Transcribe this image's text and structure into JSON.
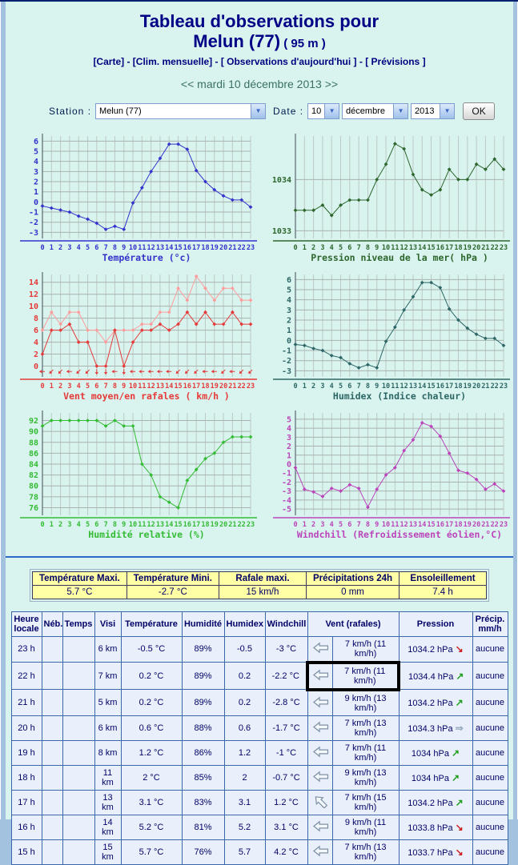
{
  "page": {
    "title_line1": "Tableau d'observations pour",
    "title_city": "Melun (77)",
    "title_alt": " ( 95 m )",
    "nav_links": [
      "[Carte]",
      "[Clim. mensuelle]",
      "[ Observations d'aujourd'hui ]",
      "[ Prévisions ]"
    ],
    "nav_sep": " - ",
    "date_nav": {
      "prev": "<<",
      "label": "mardi 10 décembre 2013",
      "next": ">>"
    },
    "station_label": "Station :",
    "station_value": "Melun (77)",
    "date_label": "Date :",
    "date_day": "10",
    "date_month": "décembre",
    "date_year": "2013",
    "ok_label": "OK"
  },
  "icons": {
    "dropdown": "▼",
    "trend_up": "↗",
    "trend_down": "↘",
    "trend_steady": "⇒"
  },
  "chart_data": [
    {
      "name": "temperature",
      "type": "line",
      "title": "Température (°c)",
      "color": "#3333cc",
      "categories": [
        0,
        1,
        2,
        3,
        4,
        5,
        6,
        7,
        8,
        9,
        10,
        11,
        12,
        13,
        14,
        15,
        16,
        17,
        18,
        19,
        20,
        21,
        22,
        23
      ],
      "series": [
        {
          "name": "Température",
          "values": [
            -0.4,
            -0.6,
            -0.8,
            -1.0,
            -1.4,
            -1.7,
            -2.1,
            -2.7,
            -2.4,
            -2.7,
            -0.1,
            1.4,
            3.0,
            4.3,
            5.7,
            5.7,
            5.2,
            3.1,
            2.0,
            1.2,
            0.6,
            0.2,
            0.2,
            -0.5
          ]
        }
      ],
      "ylim": [
        -3.6,
        6.5
      ],
      "yticks": [
        -3,
        -2,
        -1,
        0,
        1,
        2,
        3,
        4,
        5,
        6
      ]
    },
    {
      "name": "pressure",
      "type": "line",
      "title": "Pression niveau de la mer( hPa )",
      "color": "#2d662d",
      "categories": [
        0,
        1,
        2,
        3,
        4,
        5,
        6,
        7,
        8,
        9,
        10,
        11,
        12,
        13,
        14,
        15,
        16,
        17,
        18,
        19,
        20,
        21,
        22,
        23
      ],
      "series": [
        {
          "name": "Pression",
          "values": [
            1033.4,
            1033.4,
            1033.4,
            1033.5,
            1033.3,
            1033.5,
            1033.6,
            1033.6,
            1033.6,
            1034.0,
            1034.3,
            1034.7,
            1034.6,
            1034.1,
            1033.8,
            1033.7,
            1033.8,
            1034.2,
            1034.0,
            1034.0,
            1034.3,
            1034.2,
            1034.4,
            1034.2
          ]
        }
      ],
      "ylim": [
        1032.85,
        1034.85
      ],
      "yticks": [
        1033,
        1034
      ]
    },
    {
      "name": "wind",
      "type": "line",
      "title": "Vent moyen/en rafales ( km/h )",
      "color": "#e63939",
      "color2": "#ff9c9c",
      "categories": [
        0,
        1,
        2,
        3,
        4,
        5,
        6,
        7,
        8,
        9,
        10,
        11,
        12,
        13,
        14,
        15,
        16,
        17,
        18,
        19,
        20,
        21,
        22,
        23
      ],
      "series": [
        {
          "name": "Vent moyen",
          "values": [
            2,
            6,
            6,
            7,
            4,
            4,
            0,
            0,
            6,
            0,
            4,
            6,
            6,
            7,
            6,
            7,
            9,
            7,
            9,
            7,
            7,
            9,
            7,
            7
          ]
        },
        {
          "name": "Rafales",
          "values": [
            6,
            9,
            7,
            9,
            9,
            6,
            6,
            4,
            6,
            6,
            6,
            7,
            7,
            9,
            9,
            13,
            11,
            15,
            13,
            11,
            13,
            13,
            11,
            11
          ]
        }
      ],
      "ylim": [
        -1.8,
        15.3
      ],
      "yticks": [
        0,
        2,
        4,
        6,
        8,
        10,
        12,
        14
      ],
      "arrows_deg": [
        180,
        135,
        135,
        180,
        135,
        135,
        90,
        90,
        180,
        90,
        180,
        180,
        180,
        180,
        180,
        135,
        135,
        135,
        180,
        180,
        135,
        180,
        135,
        135
      ],
      "arrows_baseline": -0.9
    },
    {
      "name": "humidex",
      "type": "line",
      "title": "Humidex (Indice chaleur)",
      "color": "#2d6666",
      "categories": [
        0,
        1,
        2,
        3,
        4,
        5,
        6,
        7,
        8,
        9,
        10,
        11,
        12,
        13,
        14,
        15,
        16,
        17,
        18,
        19,
        20,
        21,
        22,
        23
      ],
      "series": [
        {
          "name": "Humidex",
          "values": [
            -0.4,
            -0.5,
            -0.8,
            -1.0,
            -1.5,
            -1.7,
            -2.3,
            -2.7,
            -2.4,
            -2.7,
            -0.1,
            1.3,
            3.0,
            4.3,
            5.7,
            5.7,
            5.2,
            3.1,
            2.0,
            1.2,
            0.6,
            0.2,
            0.2,
            -0.5
          ]
        }
      ],
      "ylim": [
        -3.6,
        6.5
      ],
      "yticks": [
        -3,
        -2,
        -1,
        0,
        1,
        2,
        3,
        4,
        5,
        6
      ]
    },
    {
      "name": "humidity",
      "type": "line",
      "title": "Humidité relative (%)",
      "color": "#33bb33",
      "categories": [
        0,
        1,
        2,
        3,
        4,
        5,
        6,
        7,
        8,
        9,
        10,
        11,
        12,
        13,
        14,
        15,
        16,
        17,
        18,
        19,
        20,
        21,
        22,
        23
      ],
      "series": [
        {
          "name": "Humidité",
          "values": [
            91,
            92,
            92,
            92,
            92,
            92,
            92,
            91,
            92,
            91,
            91,
            84,
            82,
            78,
            77,
            76,
            81,
            83,
            85,
            86,
            88,
            89,
            89,
            89
          ]
        }
      ],
      "ylim": [
        74.6,
        93.4
      ],
      "yticks": [
        76,
        78,
        80,
        82,
        84,
        86,
        88,
        90,
        92
      ]
    },
    {
      "name": "windchill",
      "type": "line",
      "title": "Windchill (Refroidissement éolien,°C)",
      "color": "#bb44bb",
      "categories": [
        0,
        1,
        2,
        3,
        4,
        5,
        6,
        7,
        8,
        9,
        10,
        11,
        12,
        13,
        14,
        15,
        16,
        17,
        18,
        19,
        20,
        21,
        22,
        23
      ],
      "series": [
        {
          "name": "Windchill",
          "values": [
            -0.4,
            -2.8,
            -3.1,
            -3.6,
            -2.7,
            -3.0,
            -2.3,
            -2.7,
            -4.8,
            -2.8,
            -1.2,
            -0.4,
            1.5,
            2.7,
            4.6,
            4.2,
            3.1,
            1.2,
            -0.7,
            -1.0,
            -1.7,
            -2.8,
            -2.2,
            -3.0
          ]
        }
      ],
      "ylim": [
        -5.7,
        5.7
      ],
      "yticks": [
        -5,
        -4,
        -3,
        -2,
        -1,
        0,
        1,
        2,
        3,
        4,
        5
      ]
    }
  ],
  "summary": {
    "headers": [
      "Température Maxi.",
      "Température Mini.",
      "Rafale maxi.",
      "Précipitations 24h",
      "Ensoleillement"
    ],
    "values": [
      "5.7 °C",
      "-2.7 °C",
      "15 km/h",
      "0 mm",
      "7.4 h"
    ]
  },
  "obs_table": {
    "headers": [
      {
        "label": "Heure locale"
      },
      {
        "label": "Néb."
      },
      {
        "label": "Temps"
      },
      {
        "label": "Visi"
      },
      {
        "label": "Température"
      },
      {
        "label": "Humidité"
      },
      {
        "label": "Humidex"
      },
      {
        "label": "Windchill"
      },
      {
        "label": "Vent (rafales)",
        "colspan": 2
      },
      {
        "label": "Pression"
      },
      {
        "label": "Précip. mm/h"
      }
    ],
    "rows": [
      {
        "hour": "23 h",
        "neb": "",
        "temps": "",
        "visi": "6 km",
        "temp": "-0.5 °C",
        "hum": "89%",
        "humidex": "-0.5",
        "windchill": "-3 °C",
        "wind_dir": "left",
        "wind": "7 km/h (11 km/h)",
        "pression": "1034.2 hPa",
        "trend": "down",
        "precip": "aucune",
        "highlight": false
      },
      {
        "hour": "22 h",
        "neb": "",
        "temps": "",
        "visi": "7 km",
        "temp": "0.2 °C",
        "hum": "89%",
        "humidex": "0.2",
        "windchill": "-2.2 °C",
        "wind_dir": "left",
        "wind": "7 km/h (11 km/h)",
        "pression": "1034.4 hPa",
        "trend": "up",
        "precip": "aucune",
        "highlight": true
      },
      {
        "hour": "21 h",
        "neb": "",
        "temps": "",
        "visi": "5 km",
        "temp": "0.2 °C",
        "hum": "89%",
        "humidex": "0.2",
        "windchill": "-2.8 °C",
        "wind_dir": "left",
        "wind": "9 km/h (13 km/h)",
        "pression": "1034.2 hPa",
        "trend": "up",
        "precip": "aucune",
        "highlight": false
      },
      {
        "hour": "20 h",
        "neb": "",
        "temps": "",
        "visi": "6 km",
        "temp": "0.6 °C",
        "hum": "88%",
        "humidex": "0.6",
        "windchill": "-1.7 °C",
        "wind_dir": "left",
        "wind": "7 km/h (13 km/h)",
        "pression": "1034.3 hPa",
        "trend": "steady",
        "precip": "aucune",
        "highlight": false
      },
      {
        "hour": "19 h",
        "neb": "",
        "temps": "",
        "visi": "8 km",
        "temp": "1.2 °C",
        "hum": "86%",
        "humidex": "1.2",
        "windchill": "-1 °C",
        "wind_dir": "left",
        "wind": "7 km/h (11 km/h)",
        "pression": "1034 hPa",
        "trend": "up",
        "precip": "aucune",
        "highlight": false
      },
      {
        "hour": "18 h",
        "neb": "",
        "temps": "",
        "visi": "11 km",
        "temp": "2 °C",
        "hum": "85%",
        "humidex": "2",
        "windchill": "-0.7 °C",
        "wind_dir": "left",
        "wind": "9 km/h (13 km/h)",
        "pression": "1034 hPa",
        "trend": "up",
        "precip": "aucune",
        "highlight": false
      },
      {
        "hour": "17 h",
        "neb": "",
        "temps": "",
        "visi": "13 km",
        "temp": "3.1 °C",
        "hum": "83%",
        "humidex": "3.1",
        "windchill": "1.2 °C",
        "wind_dir": "down-left",
        "wind": "7 km/h (15 km/h)",
        "pression": "1034.2 hPa",
        "trend": "up",
        "precip": "aucune",
        "highlight": false
      },
      {
        "hour": "16 h",
        "neb": "",
        "temps": "",
        "visi": "14 km",
        "temp": "5.2 °C",
        "hum": "81%",
        "humidex": "5.2",
        "windchill": "3.1 °C",
        "wind_dir": "left",
        "wind": "9 km/h (11 km/h)",
        "pression": "1033.8 hPa",
        "trend": "down",
        "precip": "aucune",
        "highlight": false
      },
      {
        "hour": "15 h",
        "neb": "",
        "temps": "",
        "visi": "15 km",
        "temp": "5.7 °C",
        "hum": "76%",
        "humidex": "5.7",
        "windchill": "4.2 °C",
        "wind_dir": "left",
        "wind": "7 km/h (13 km/h)",
        "pression": "1033.7 hPa",
        "trend": "down",
        "precip": "aucune",
        "highlight": false
      }
    ]
  }
}
